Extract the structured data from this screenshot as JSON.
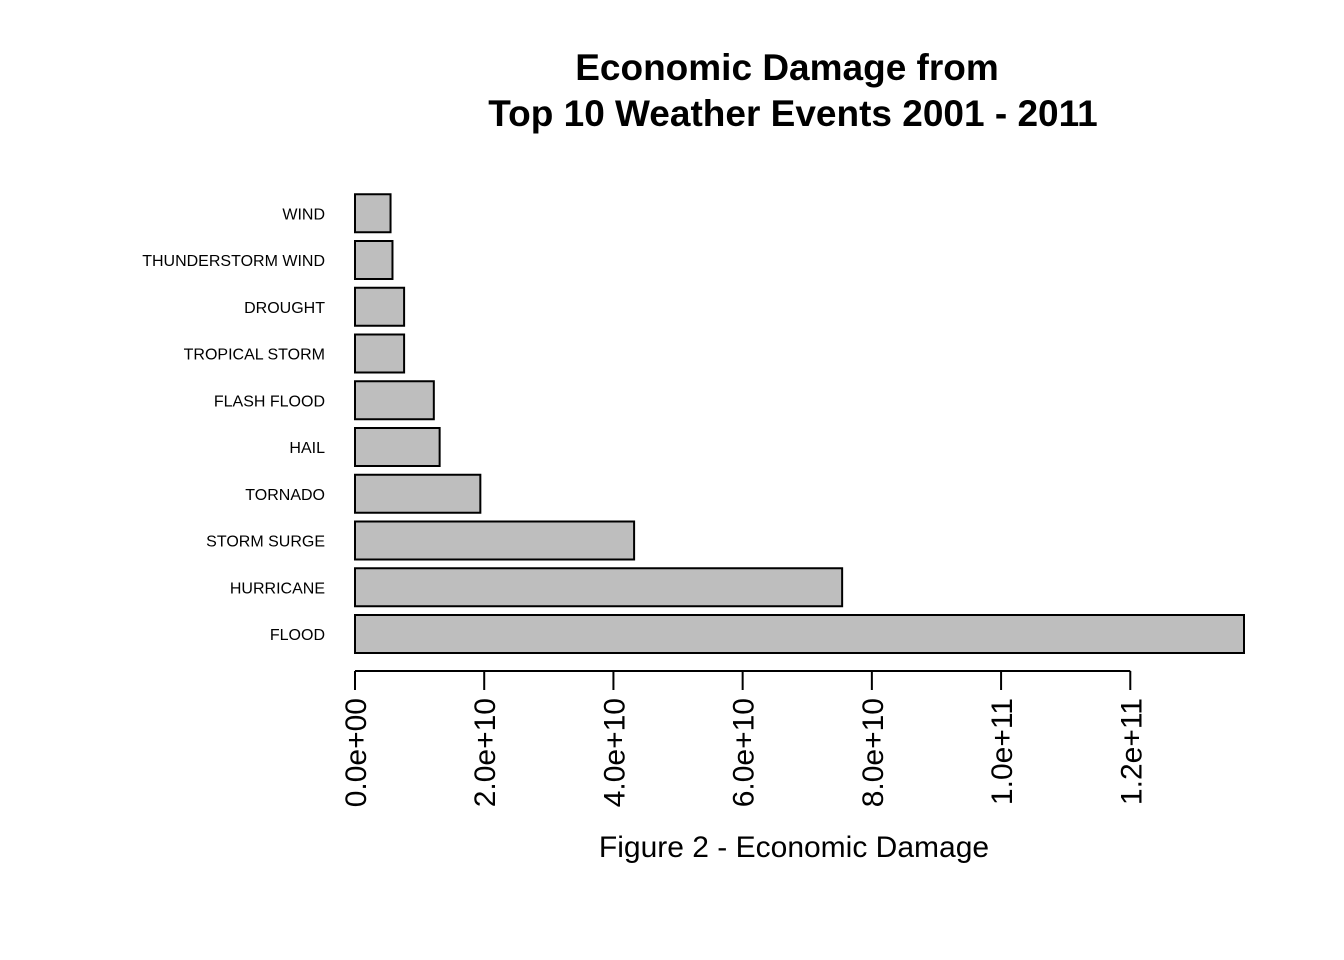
{
  "chart_data": {
    "type": "bar",
    "orientation": "horizontal",
    "title": [
      "Economic Damage from",
      "Top 10 Weather Events 2001 - 2011"
    ],
    "xlabel": "Figure 2 - Economic Damage",
    "ylabel": "",
    "categories": [
      "FLOOD",
      "HURRICANE",
      "STORM SURGE",
      "TORNADO",
      "HAIL",
      "FLASH FLOOD",
      "TROPICAL STORM",
      "DROUGHT",
      "THUNDERSTORM WIND",
      "WIND"
    ],
    "values": [
      137600000000,
      75400000000,
      43200000000,
      19400000000,
      13100000000,
      12200000000,
      7600000000,
      7600000000,
      5800000000,
      5500000000
    ],
    "xlim": [
      0,
      137600000000
    ],
    "ticks": [
      0,
      20000000000,
      40000000000,
      60000000000,
      80000000000,
      100000000000,
      120000000000
    ],
    "tick_labels": [
      "0.0e+00",
      "2.0e+10",
      "4.0e+10",
      "6.0e+10",
      "8.0e+10",
      "1.0e+11",
      "1.2e+11"
    ],
    "grid": false,
    "colors": {
      "bar_fill": "#bebebe",
      "bar_stroke": "#000000"
    }
  }
}
